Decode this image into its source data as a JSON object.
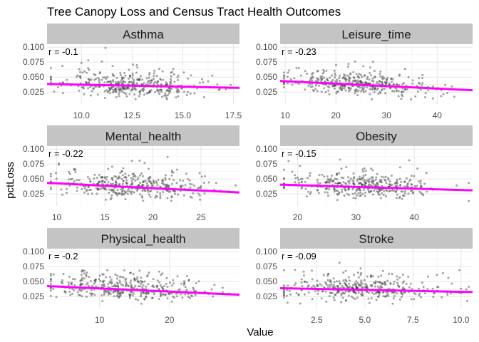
{
  "chart_data": {
    "type": "scatter",
    "title": "Tree Canopy Loss and Census Tract Health Outcomes",
    "xlabel": "Value",
    "ylabel": "pctLoss",
    "y_ticks": [
      0.025,
      0.05,
      0.075,
      0.1
    ],
    "y_tick_labels": [
      "0.025",
      "0.050",
      "0.075",
      "0.100"
    ],
    "ylim": [
      0.005,
      0.105
    ],
    "point_color": "#333333",
    "trend_color": "#ff00ff",
    "strip_color": "#c4c4c4",
    "grid": true,
    "panels": [
      {
        "name": "Asthma",
        "r_label": "r = -0.1",
        "xlim": [
          8.3,
          17.8
        ],
        "x_ticks": [
          10,
          12.5,
          15,
          17.5
        ],
        "x_tick_labels": [
          "10.0",
          "12.5",
          "15.0",
          "17.5"
        ],
        "trend": {
          "x": [
            8.3,
            17.8
          ],
          "y": [
            0.0385,
            0.032
          ]
        }
      },
      {
        "name": "Leisure_time",
        "r_label": "r = -0.23",
        "xlim": [
          9,
          47
        ],
        "x_ticks": [
          10,
          20,
          30,
          40
        ],
        "x_tick_labels": [
          "10",
          "20",
          "30",
          "40"
        ],
        "trend": {
          "x": [
            9,
            47
          ],
          "y": [
            0.0435,
            0.028
          ]
        }
      },
      {
        "name": "Mental_health",
        "r_label": "r = -0.22",
        "xlim": [
          9,
          29
        ],
        "x_ticks": [
          10,
          15,
          20,
          25
        ],
        "x_tick_labels": [
          "10",
          "15",
          "20",
          "25"
        ],
        "trend": {
          "x": [
            9,
            29
          ],
          "y": [
            0.0435,
            0.0275
          ]
        }
      },
      {
        "name": "Obesity",
        "r_label": "r = -0.15",
        "xlim": [
          17,
          50
        ],
        "x_ticks": [
          20,
          30,
          40
        ],
        "x_tick_labels": [
          "20",
          "30",
          "40"
        ],
        "trend": {
          "x": [
            17,
            50
          ],
          "y": [
            0.0405,
            0.031
          ]
        }
      },
      {
        "name": "Physical_health",
        "r_label": "r = -0.2",
        "xlim": [
          2.5,
          30
        ],
        "x_ticks": [
          10,
          20
        ],
        "x_tick_labels": [
          "10",
          "20"
        ],
        "trend": {
          "x": [
            2.5,
            30
          ],
          "y": [
            0.0425,
            0.028
          ]
        }
      },
      {
        "name": "Stroke",
        "r_label": "r = -0.09",
        "xlim": [
          0.6,
          10.6
        ],
        "x_ticks": [
          2.5,
          5,
          7.5,
          10
        ],
        "x_tick_labels": [
          "2.5",
          "5.0",
          "7.5",
          "10.0"
        ],
        "trend": {
          "x": [
            0.6,
            10.6
          ],
          "y": [
            0.039,
            0.0325
          ]
        }
      }
    ]
  }
}
